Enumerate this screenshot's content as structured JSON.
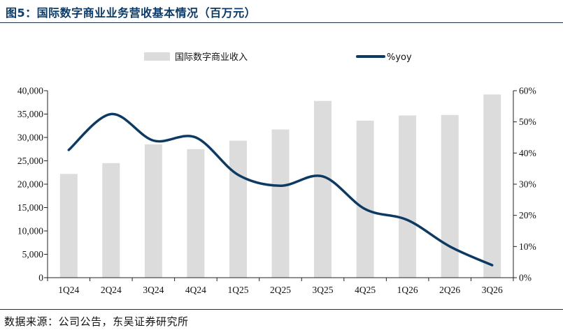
{
  "figure": {
    "title": "图5：国际数字商业业务营收基本情况（百万元）",
    "source": "数据来源：公司公告，东吴证券研究所"
  },
  "chart_data": {
    "type": "bar",
    "categories": [
      "1Q24",
      "2Q24",
      "3Q24",
      "4Q24",
      "1Q25",
      "2Q25",
      "3Q25",
      "4Q25",
      "1Q26",
      "2Q26",
      "3Q26"
    ],
    "series": [
      {
        "name": "国际数字商业收入",
        "type": "bar",
        "axis": "left",
        "color": "#dcdcdc",
        "values": [
          22200,
          24500,
          28500,
          27500,
          29300,
          31700,
          37800,
          33600,
          34700,
          34800,
          39200
        ]
      },
      {
        "name": "%yoy",
        "type": "line",
        "axis": "right",
        "color": "#0d3a63",
        "values": [
          41,
          52.5,
          44,
          45,
          33,
          29.5,
          32.5,
          22,
          18.5,
          10,
          4
        ]
      }
    ],
    "y_left": {
      "min": 0,
      "max": 40000,
      "step": 5000,
      "tick_labels": [
        "0",
        "5,000",
        "10,000",
        "15,000",
        "20,000",
        "25,000",
        "30,000",
        "35,000",
        "40,000"
      ]
    },
    "y_right": {
      "min": 0,
      "max": 60,
      "step": 10,
      "tick_labels": [
        "0%",
        "10%",
        "20%",
        "30%",
        "40%",
        "50%",
        "60%"
      ]
    },
    "grid": false,
    "legend_position": "top"
  }
}
